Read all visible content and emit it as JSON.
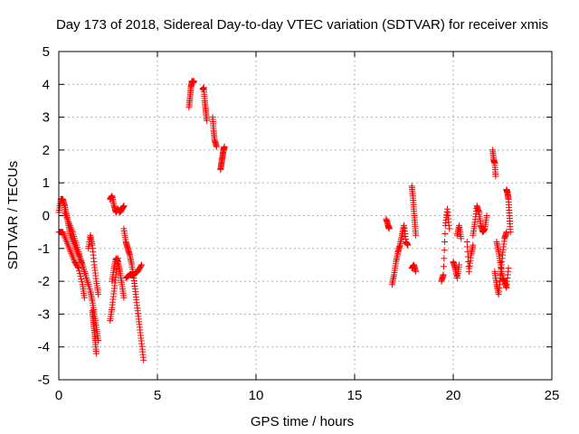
{
  "chart_data": {
    "type": "scatter",
    "title": "Day 173 of 2018, Sidereal Day-to-day VTEC variation (SDTVAR) for receiver xmis",
    "xlabel": "GPS time / hours",
    "ylabel": "SDTVAR / TECUs",
    "xlim": [
      0,
      25
    ],
    "ylim": [
      -5,
      5
    ],
    "xticks": [
      0,
      5,
      10,
      15,
      20,
      25
    ],
    "yticks": [
      -5,
      -4,
      -3,
      -2,
      -1,
      0,
      1,
      2,
      3,
      4,
      5
    ],
    "grid": true,
    "marker": "+",
    "marker_color": "#ff0000",
    "series": [
      {
        "name": "SDTVAR",
        "segments": [
          {
            "x": [
              0.0,
              0.1,
              0.2,
              0.3,
              0.4,
              0.5,
              0.6,
              0.8,
              1.0,
              1.2,
              1.4,
              1.6,
              1.7,
              1.8,
              1.9,
              2.0
            ],
            "y": [
              0.1,
              0.5,
              0.5,
              0.3,
              0.0,
              -0.3,
              -0.6,
              -0.9,
              -1.2,
              -1.5,
              -1.9,
              -2.3,
              -2.6,
              -3.0,
              -3.4,
              -3.8
            ]
          },
          {
            "x": [
              0.0,
              0.2,
              0.4,
              0.6,
              0.8,
              1.0,
              1.2,
              1.3
            ],
            "y": [
              -0.5,
              -0.5,
              -0.8,
              -1.1,
              -1.4,
              -1.6,
              -2.1,
              -2.5
            ]
          },
          {
            "x": [
              0.3,
              0.5,
              0.7,
              0.9,
              1.1,
              1.3,
              1.5
            ],
            "y": [
              0.1,
              -0.2,
              -0.5,
              -0.9,
              -1.3,
              -1.7,
              -2.1
            ]
          },
          {
            "x": [
              1.5,
              1.6,
              1.7,
              1.8,
              1.9,
              2.0
            ],
            "y": [
              -1.0,
              -0.6,
              -0.9,
              -1.5,
              -2.0,
              -2.4
            ]
          },
          {
            "x": [
              1.7,
              1.75,
              1.8,
              1.85,
              1.9
            ],
            "y": [
              -2.9,
              -3.2,
              -3.5,
              -3.8,
              -4.2
            ]
          },
          {
            "x": [
              2.6,
              2.7,
              2.8,
              2.9,
              3.0,
              3.1,
              3.2,
              3.3
            ],
            "y": [
              0.5,
              0.6,
              0.3,
              0.1,
              0.2,
              0.1,
              0.2,
              0.3
            ]
          },
          {
            "x": [
              2.6,
              2.7,
              2.8,
              2.9,
              3.0
            ],
            "y": [
              -3.2,
              -2.8,
              -2.3,
              -1.8,
              -1.3
            ]
          },
          {
            "x": [
              2.7,
              2.8,
              2.9,
              3.0,
              3.1,
              3.2,
              3.3
            ],
            "y": [
              -2.0,
              -1.6,
              -1.3,
              -1.4,
              -1.7,
              -2.1,
              -2.5
            ]
          },
          {
            "x": [
              3.3,
              3.4,
              3.5,
              3.6,
              3.7,
              3.8,
              3.9,
              4.0,
              4.1,
              4.2,
              4.3
            ],
            "y": [
              -0.4,
              -0.8,
              -1.0,
              -1.2,
              -1.5,
              -1.9,
              -2.4,
              -2.9,
              -3.4,
              -3.9,
              -4.4
            ]
          },
          {
            "x": [
              3.4,
              3.6,
              3.8,
              4.0,
              4.2
            ],
            "y": [
              -1.9,
              -1.8,
              -1.8,
              -1.7,
              -1.5
            ]
          },
          {
            "x": [
              6.6,
              6.65,
              6.7,
              6.75,
              6.8,
              6.85
            ],
            "y": [
              3.3,
              3.6,
              3.9,
              4.1,
              4.05,
              4.1
            ]
          },
          {
            "x": [
              7.3,
              7.35,
              7.4,
              7.45,
              7.5
            ],
            "y": [
              3.85,
              3.9,
              3.5,
              3.2,
              2.9
            ]
          },
          {
            "x": [
              7.8,
              7.85,
              7.9,
              8.0
            ],
            "y": [
              3.0,
              2.6,
              2.3,
              2.1
            ]
          },
          {
            "x": [
              8.2,
              8.25,
              8.3,
              8.35,
              8.4
            ],
            "y": [
              1.4,
              1.6,
              1.8,
              2.0,
              2.1
            ]
          },
          {
            "x": [
              16.6,
              16.7,
              16.75
            ],
            "y": [
              -0.1,
              -0.3,
              -0.4
            ]
          },
          {
            "x": [
              16.9,
              17.0,
              17.1,
              17.2,
              17.3,
              17.4,
              17.5,
              17.6,
              17.7
            ],
            "y": [
              -2.1,
              -1.8,
              -1.4,
              -1.1,
              -0.9,
              -0.6,
              -0.3,
              -0.8,
              -0.9
            ]
          },
          {
            "x": [
              17.9,
              17.95,
              18.0,
              18.05,
              18.1
            ],
            "y": [
              0.9,
              0.6,
              0.2,
              -0.2,
              -0.6
            ]
          },
          {
            "x": [
              17.9,
              18.0,
              18.1
            ],
            "y": [
              -1.6,
              -1.5,
              -1.7
            ]
          },
          {
            "x": [
              19.4,
              19.5,
              19.6,
              19.7,
              19.8
            ],
            "y": [
              -2.0,
              -1.8,
              -0.3,
              0.2,
              -0.4
            ]
          },
          {
            "x": [
              20.0,
              20.1,
              20.2,
              20.3
            ],
            "y": [
              -1.4,
              -1.6,
              -1.9,
              -1.5
            ]
          },
          {
            "x": [
              20.2,
              20.3,
              20.4
            ],
            "y": [
              -0.6,
              -0.3,
              -0.7
            ]
          },
          {
            "x": [
              20.7,
              20.8,
              20.9,
              21.0
            ],
            "y": [
              -0.8,
              -1.7,
              -1.2,
              -0.9
            ]
          },
          {
            "x": [
              21.0,
              21.1,
              21.2,
              21.3,
              21.4,
              21.5,
              21.6,
              21.7
            ],
            "y": [
              -0.6,
              -0.2,
              0.3,
              0.1,
              -0.3,
              -0.5,
              -0.4,
              0.0
            ]
          },
          {
            "x": [
              22.0,
              22.05,
              22.1,
              22.15
            ],
            "y": [
              2.0,
              1.7,
              1.6,
              1.2
            ]
          },
          {
            "x": [
              22.1,
              22.2,
              22.3,
              22.4,
              22.5,
              22.6,
              22.7
            ],
            "y": [
              -1.7,
              -2.1,
              -2.4,
              -1.8,
              -1.2,
              -0.7,
              -0.5
            ]
          },
          {
            "x": [
              22.2,
              22.3,
              22.4,
              22.5,
              22.6,
              22.7,
              22.8
            ],
            "y": [
              -0.8,
              -1.1,
              -1.5,
              -1.9,
              -2.0,
              -2.2,
              -1.6
            ]
          },
          {
            "x": [
              22.7,
              22.75,
              22.8,
              22.85,
              22.9
            ],
            "y": [
              0.8,
              0.7,
              0.5,
              0.0,
              -0.5
            ]
          }
        ]
      }
    ]
  }
}
